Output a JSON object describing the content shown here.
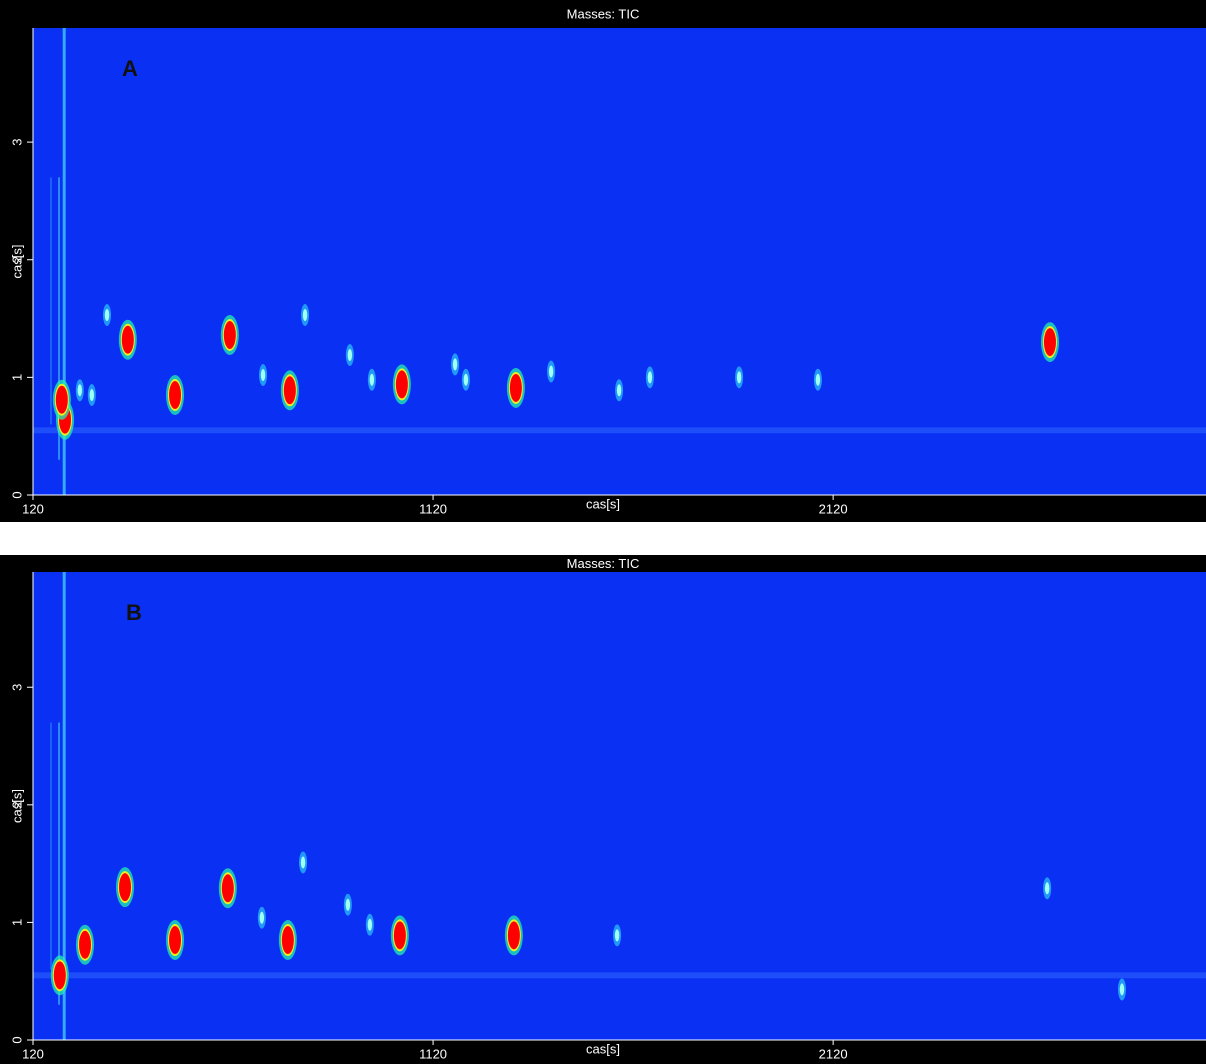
{
  "chart_data": [
    {
      "type": "scatter",
      "title": "Masses: TIC",
      "label": "A",
      "xlabel": "cas[s]",
      "ylabel": "cas[s]",
      "background": "#0a30f4",
      "xlim": [
        120,
        3052
      ],
      "ylim": [
        0,
        3.97
      ],
      "xticks": [
        120,
        1120,
        2120
      ],
      "yticks": [
        0,
        1,
        2,
        3
      ],
      "series": [
        {
          "color": "#ff0000",
          "x": [
            357,
            475,
            612,
            762,
            1042,
            1327,
            200,
            192,
            2662
          ],
          "values": [
            1.32,
            0.85,
            1.36,
            0.89,
            0.94,
            0.91,
            0.64,
            0.81,
            1.3
          ]
        },
        {
          "color": "#30e0ff",
          "x": [
            695,
            800,
            912,
            967,
            1175,
            1202,
            1415,
            1585,
            1662,
            1885,
            2082,
            305,
            267,
            237
          ],
          "values": [
            1.02,
            1.53,
            1.19,
            0.98,
            1.11,
            0.98,
            1.05,
            0.89,
            1.0,
            1.0,
            0.98,
            1.53,
            0.85,
            0.89
          ]
        }
      ]
    },
    {
      "type": "scatter",
      "title": "Masses: TIC",
      "label": "B",
      "xlabel": "cas[s]",
      "ylabel": "cas[s]",
      "background": "#0a30f4",
      "xlim": [
        120,
        3052
      ],
      "ylim": [
        0,
        3.98
      ],
      "xticks": [
        120,
        1120,
        2120
      ],
      "yticks": [
        0,
        1,
        2,
        3
      ],
      "series": [
        {
          "color": "#ff0000",
          "x": [
            350,
            475,
            607,
            757,
            1037,
            1322,
            250,
            187
          ],
          "values": [
            1.3,
            0.85,
            1.29,
            0.85,
            0.89,
            0.89,
            0.81,
            0.55
          ]
        },
        {
          "color": "#30e0ff",
          "x": [
            692,
            795,
            907,
            962,
            1580,
            2655,
            2842
          ],
          "values": [
            1.04,
            1.51,
            1.15,
            0.98,
            0.89,
            1.29,
            0.43
          ]
        }
      ]
    }
  ]
}
